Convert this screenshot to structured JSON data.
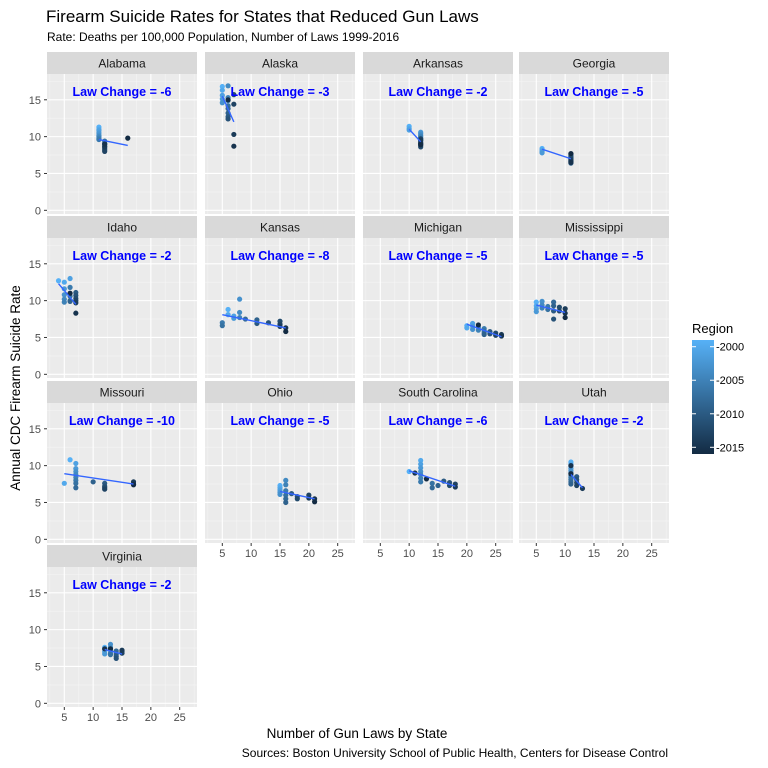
{
  "chart_data": {
    "type": "scatter",
    "title": "Firearm Suicide Rates for States that Reduced Gun Laws",
    "subtitle": "Rate: Deaths per 100,000 Population, Number of Laws 1999-2016",
    "xlabel": "Number of Gun Laws by State",
    "ylabel": "Annual CDC Firearm Suicide Rate",
    "caption": "Sources: Boston University School of Public Health, Centers for Disease Control",
    "xlim": [
      2,
      28
    ],
    "ylim": [
      -0.5,
      18.5
    ],
    "xticks": [
      5,
      10,
      15,
      20,
      25
    ],
    "yticks": [
      0,
      5,
      10,
      15
    ],
    "grid": true,
    "legend": {
      "title": "Region",
      "position": "right",
      "range": [
        1999,
        2016
      ],
      "ticks": [
        2000,
        2005,
        2010,
        2015
      ],
      "tick_labels": [
        "-2000",
        "-2005",
        "-2010",
        "-2015"
      ],
      "low_color": "#56B1F7",
      "high_color": "#132B43"
    },
    "annotation_prefix": "Law Change =  ",
    "panels": [
      {
        "state": "Alabama",
        "law_change": "-6",
        "points": [
          [
            11,
            11.3
          ],
          [
            11,
            11.0
          ],
          [
            11,
            10.8
          ],
          [
            11,
            10.5
          ],
          [
            11,
            10.2
          ],
          [
            11,
            10.0
          ],
          [
            11,
            9.8
          ],
          [
            11,
            9.6
          ],
          [
            12,
            9.4
          ],
          [
            12,
            9.1
          ],
          [
            12,
            8.9
          ],
          [
            12,
            8.7
          ],
          [
            12,
            8.4
          ],
          [
            12,
            8.2
          ],
          [
            12,
            8.0
          ],
          [
            12,
            8.6
          ],
          [
            12,
            9.0
          ],
          [
            16,
            9.8
          ]
        ],
        "fit": [
          [
            11,
            9.6
          ],
          [
            16,
            8.8
          ]
        ]
      },
      {
        "state": "Alaska",
        "law_change": "-3",
        "points": [
          [
            5,
            16.8
          ],
          [
            5,
            16.3
          ],
          [
            5,
            15.6
          ],
          [
            5,
            15.1
          ],
          [
            5,
            14.6
          ],
          [
            6,
            16.9
          ],
          [
            6,
            15.3
          ],
          [
            6,
            14.9
          ],
          [
            6,
            14.2
          ],
          [
            6,
            13.8
          ],
          [
            6,
            13.2
          ],
          [
            6,
            12.7
          ],
          [
            6,
            12.4
          ],
          [
            7,
            15.7
          ],
          [
            7,
            14.4
          ],
          [
            7,
            10.3
          ],
          [
            7,
            8.7
          ],
          [
            6,
            15.0
          ]
        ],
        "fit": [
          [
            5,
            15.5
          ],
          [
            7,
            12.0
          ]
        ]
      },
      {
        "state": "Arkansas",
        "law_change": "-2",
        "points": [
          [
            10,
            11.4
          ],
          [
            10,
            11.1
          ],
          [
            10,
            10.9
          ],
          [
            12,
            10.6
          ],
          [
            12,
            10.4
          ],
          [
            12,
            10.2
          ],
          [
            12,
            10.0
          ],
          [
            12,
            9.8
          ],
          [
            12,
            9.6
          ],
          [
            12,
            9.4
          ],
          [
            12,
            9.2
          ],
          [
            12,
            9.0
          ],
          [
            12,
            8.8
          ],
          [
            12,
            8.6
          ],
          [
            12,
            9.7
          ],
          [
            12,
            9.5
          ],
          [
            12,
            9.1
          ],
          [
            12,
            8.9
          ]
        ],
        "fit": [
          [
            10,
            11.0
          ],
          [
            12,
            9.3
          ]
        ]
      },
      {
        "state": "Georgia",
        "law_change": "-5",
        "points": [
          [
            6,
            8.4
          ],
          [
            6,
            8.2
          ],
          [
            6,
            8.0
          ],
          [
            6,
            7.8
          ],
          [
            11,
            7.6
          ],
          [
            11,
            7.4
          ],
          [
            11,
            7.2
          ],
          [
            11,
            7.0
          ],
          [
            11,
            6.8
          ],
          [
            11,
            6.6
          ],
          [
            11,
            6.4
          ],
          [
            11,
            7.5
          ],
          [
            11,
            7.3
          ],
          [
            11,
            7.1
          ],
          [
            11,
            6.9
          ],
          [
            11,
            6.7
          ],
          [
            11,
            6.5
          ],
          [
            11,
            7.7
          ]
        ],
        "fit": [
          [
            6,
            8.3
          ],
          [
            11,
            7.0
          ]
        ]
      },
      {
        "state": "Idaho",
        "law_change": "-2",
        "points": [
          [
            4,
            12.7
          ],
          [
            5,
            12.5
          ],
          [
            6,
            13.0
          ],
          [
            5,
            11.6
          ],
          [
            5,
            10.8
          ],
          [
            5,
            10.2
          ],
          [
            5,
            9.8
          ],
          [
            6,
            11.8
          ],
          [
            6,
            10.6
          ],
          [
            6,
            10.0
          ],
          [
            6,
            9.9
          ],
          [
            7,
            11.1
          ],
          [
            7,
            10.7
          ],
          [
            7,
            10.3
          ],
          [
            7,
            10.0
          ],
          [
            7,
            9.7
          ],
          [
            7,
            8.3
          ],
          [
            6,
            11.0
          ]
        ],
        "fit": [
          [
            4,
            12.3
          ],
          [
            7,
            9.5
          ]
        ]
      },
      {
        "state": "Kansas",
        "law_change": "-8",
        "points": [
          [
            6,
            8.8
          ],
          [
            6,
            8.1
          ],
          [
            7,
            7.9
          ],
          [
            7,
            7.6
          ],
          [
            8,
            10.2
          ],
          [
            8,
            8.4
          ],
          [
            8,
            7.7
          ],
          [
            5,
            7.0
          ],
          [
            5,
            6.6
          ],
          [
            9,
            7.5
          ],
          [
            11,
            7.4
          ],
          [
            11,
            6.9
          ],
          [
            13,
            7.0
          ],
          [
            15,
            7.2
          ],
          [
            15,
            6.8
          ],
          [
            15,
            6.5
          ],
          [
            16,
            6.3
          ],
          [
            16,
            5.8
          ]
        ],
        "fit": [
          [
            5,
            8.1
          ],
          [
            16,
            6.3
          ]
        ]
      },
      {
        "state": "Michigan",
        "law_change": "-5",
        "points": [
          [
            20,
            6.6
          ],
          [
            20,
            6.3
          ],
          [
            21,
            6.9
          ],
          [
            21,
            6.5
          ],
          [
            21,
            6.1
          ],
          [
            22,
            6.4
          ],
          [
            22,
            6.0
          ],
          [
            23,
            6.2
          ],
          [
            23,
            5.9
          ],
          [
            23,
            5.6
          ],
          [
            23,
            5.4
          ],
          [
            24,
            5.8
          ],
          [
            24,
            5.5
          ],
          [
            25,
            5.6
          ],
          [
            25,
            5.3
          ],
          [
            26,
            5.4
          ],
          [
            26,
            5.2
          ],
          [
            22,
            6.7
          ]
        ],
        "fit": [
          [
            20,
            6.8
          ],
          [
            26,
            5.1
          ]
        ]
      },
      {
        "state": "Mississippi",
        "law_change": "-5",
        "points": [
          [
            5,
            9.8
          ],
          [
            5,
            9.3
          ],
          [
            5,
            8.9
          ],
          [
            5,
            8.5
          ],
          [
            6,
            9.9
          ],
          [
            6,
            9.4
          ],
          [
            6,
            9.0
          ],
          [
            7,
            9.2
          ],
          [
            7,
            8.8
          ],
          [
            8,
            9.8
          ],
          [
            8,
            9.3
          ],
          [
            8,
            8.6
          ],
          [
            8,
            7.5
          ],
          [
            9,
            9.1
          ],
          [
            9,
            8.6
          ],
          [
            10,
            8.9
          ],
          [
            10,
            8.3
          ],
          [
            10,
            7.7
          ]
        ],
        "fit": [
          [
            5,
            9.4
          ],
          [
            10,
            8.4
          ]
        ]
      },
      {
        "state": "Missouri",
        "law_change": "-10",
        "points": [
          [
            6,
            10.8
          ],
          [
            5,
            7.6
          ],
          [
            7,
            10.3
          ],
          [
            7,
            9.6
          ],
          [
            7,
            9.2
          ],
          [
            7,
            8.8
          ],
          [
            7,
            8.4
          ],
          [
            7,
            8.0
          ],
          [
            7,
            7.6
          ],
          [
            7,
            7.0
          ],
          [
            10,
            7.8
          ],
          [
            12,
            7.6
          ],
          [
            12,
            7.2
          ],
          [
            12,
            7.0
          ],
          [
            12,
            6.8
          ],
          [
            17,
            7.8
          ],
          [
            17,
            7.5
          ],
          [
            17,
            7.4
          ]
        ],
        "fit": [
          [
            5,
            8.9
          ],
          [
            17,
            7.5
          ]
        ]
      },
      {
        "state": "Ohio",
        "law_change": "-5",
        "points": [
          [
            15,
            7.3
          ],
          [
            15,
            7.0
          ],
          [
            15,
            6.7
          ],
          [
            15,
            6.4
          ],
          [
            15,
            6.1
          ],
          [
            16,
            8.0
          ],
          [
            16,
            7.4
          ],
          [
            16,
            6.6
          ],
          [
            16,
            6.0
          ],
          [
            16,
            5.5
          ],
          [
            16,
            5.0
          ],
          [
            17,
            6.2
          ],
          [
            18,
            5.8
          ],
          [
            18,
            5.5
          ],
          [
            20,
            6.0
          ],
          [
            20,
            5.6
          ],
          [
            21,
            5.5
          ],
          [
            21,
            5.1
          ]
        ],
        "fit": [
          [
            15,
            6.5
          ],
          [
            21,
            5.5
          ]
        ]
      },
      {
        "state": "South Carolina",
        "law_change": "-6",
        "points": [
          [
            10,
            9.2
          ],
          [
            12,
            10.7
          ],
          [
            12,
            10.2
          ],
          [
            12,
            9.7
          ],
          [
            12,
            9.2
          ],
          [
            12,
            8.8
          ],
          [
            12,
            8.3
          ],
          [
            12,
            7.8
          ],
          [
            14,
            7.6
          ],
          [
            14,
            7.0
          ],
          [
            15,
            7.3
          ],
          [
            16,
            7.9
          ],
          [
            17,
            7.7
          ],
          [
            17,
            7.3
          ],
          [
            18,
            7.5
          ],
          [
            18,
            7.1
          ],
          [
            11,
            9.0
          ],
          [
            13,
            8.2
          ]
        ],
        "fit": [
          [
            10,
            9.3
          ],
          [
            18,
            7.2
          ]
        ]
      },
      {
        "state": "Utah",
        "law_change": "-2",
        "points": [
          [
            11,
            10.5
          ],
          [
            11,
            10.2
          ],
          [
            11,
            9.9
          ],
          [
            11,
            9.6
          ],
          [
            11,
            9.3
          ],
          [
            11,
            9.0
          ],
          [
            11,
            8.7
          ],
          [
            11,
            8.4
          ],
          [
            11,
            8.1
          ],
          [
            11,
            7.8
          ],
          [
            11,
            7.5
          ],
          [
            12,
            8.5
          ],
          [
            12,
            8.1
          ],
          [
            12,
            7.7
          ],
          [
            12,
            7.3
          ],
          [
            13,
            6.9
          ],
          [
            11,
            10.0
          ],
          [
            11,
            8.9
          ]
        ],
        "fit": [
          [
            11,
            8.8
          ],
          [
            13,
            7.0
          ]
        ]
      },
      {
        "state": "Virginia",
        "law_change": "-2",
        "points": [
          [
            12,
            7.6
          ],
          [
            12,
            7.3
          ],
          [
            12,
            7.0
          ],
          [
            12,
            6.7
          ],
          [
            13,
            8.0
          ],
          [
            13,
            7.6
          ],
          [
            13,
            7.2
          ],
          [
            13,
            6.8
          ],
          [
            13,
            6.6
          ],
          [
            14,
            7.1
          ],
          [
            14,
            6.7
          ],
          [
            14,
            6.4
          ],
          [
            14,
            6.1
          ],
          [
            15,
            7.0
          ],
          [
            15,
            6.8
          ],
          [
            15,
            7.2
          ],
          [
            12,
            7.4
          ],
          [
            13,
            7.4
          ]
        ],
        "fit": [
          [
            12,
            7.3
          ],
          [
            15,
            6.7
          ]
        ]
      }
    ]
  }
}
